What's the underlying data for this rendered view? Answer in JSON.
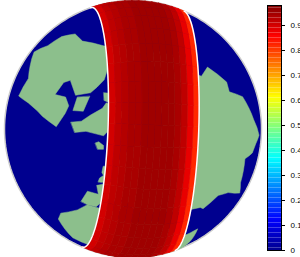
{
  "chart_data": {
    "type": "map",
    "swath": {
      "track_pole": [
        -70,
        10
      ],
      "cross_track": [
        -21,
        -18,
        -15,
        -12,
        -9,
        -6,
        -3,
        0,
        3,
        6,
        9,
        12,
        15,
        18,
        21
      ],
      "values": [
        0.82,
        0.88,
        0.92,
        0.94,
        0.95,
        0.95,
        0.95,
        0.95,
        0.95,
        0.94,
        0.94,
        0.93,
        0.92,
        0.9
      ]
    },
    "colorbar": {
      "lim": [
        0,
        0.98
      ],
      "ticks": [
        0,
        0.1,
        0.2,
        0.3,
        0.4,
        0.5,
        0.6,
        0.7,
        0.8,
        0.9
      ]
    }
  }
}
